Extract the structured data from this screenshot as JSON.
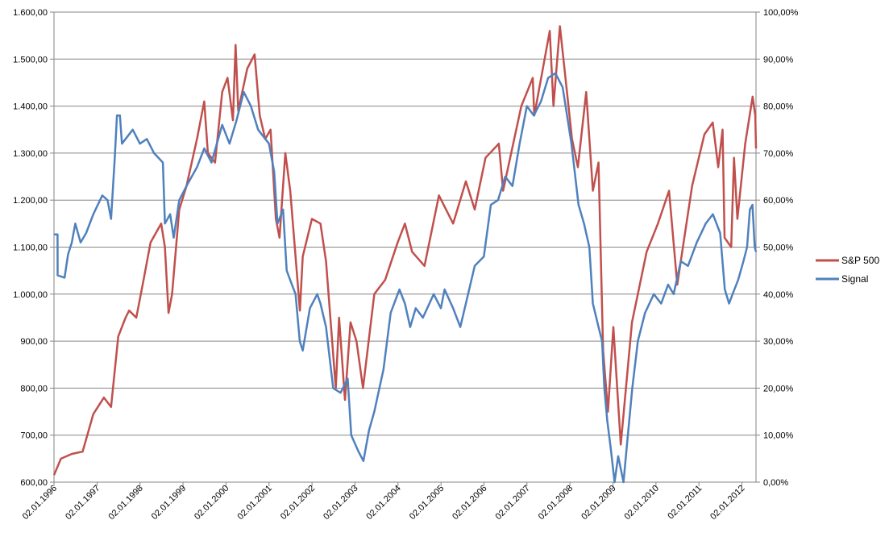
{
  "chart_data": {
    "type": "line",
    "title": "",
    "xlabel": "",
    "ylabel": "",
    "x_start": "1996-01-02",
    "x_end": "2012-05-01",
    "y_left_range": [
      600,
      1600
    ],
    "y_right_range": [
      0,
      1.0
    ],
    "y_left_ticks": [
      "600,00",
      "700,00",
      "800,00",
      "900,00",
      "1.000,00",
      "1.100,00",
      "1.200,00",
      "1.300,00",
      "1.400,00",
      "1.500,00",
      "1.600,00"
    ],
    "y_right_ticks": [
      "0,00%",
      "10,00%",
      "20,00%",
      "30,00%",
      "40,00%",
      "50,00%",
      "60,00%",
      "70,00%",
      "80,00%",
      "90,00%",
      "100,00%"
    ],
    "x_ticks": [
      "02.01.1996",
      "02.01.1997",
      "02.01.1998",
      "02.01.1999",
      "02.01.2000",
      "02.01.2001",
      "02.01.2002",
      "02.01.2003",
      "02.01.2004",
      "02.01.2005",
      "02.01.2006",
      "02.01.2007",
      "02.01.2008",
      "02.01.2009",
      "02.01.2010",
      "02.01.2011",
      "02.01.2012"
    ],
    "grid": true,
    "legend_position": "right",
    "colors": {
      "sp500": "#c0504d",
      "signal": "#4f81bd",
      "grid": "#868686",
      "axis": "#868686"
    },
    "series": [
      {
        "name": "S&P 500",
        "axis": "left",
        "points": [
          [
            "1996-01-02",
            615
          ],
          [
            "1996-03-01",
            650
          ],
          [
            "1996-06-01",
            660
          ],
          [
            "1996-09-01",
            665
          ],
          [
            "1996-12-01",
            745
          ],
          [
            "1997-03-01",
            780
          ],
          [
            "1997-05-01",
            760
          ],
          [
            "1997-07-01",
            910
          ],
          [
            "1997-09-01",
            950
          ],
          [
            "1997-10-01",
            965
          ],
          [
            "1997-12-01",
            950
          ],
          [
            "1998-02-01",
            1030
          ],
          [
            "1998-04-01",
            1110
          ],
          [
            "1998-07-01",
            1150
          ],
          [
            "1998-08-01",
            1100
          ],
          [
            "1998-09-01",
            960
          ],
          [
            "1998-10-01",
            1000
          ],
          [
            "1998-12-01",
            1180
          ],
          [
            "1999-02-01",
            1230
          ],
          [
            "1999-05-01",
            1330
          ],
          [
            "1999-07-01",
            1410
          ],
          [
            "1999-08-01",
            1300
          ],
          [
            "1999-10-01",
            1280
          ],
          [
            "1999-12-01",
            1430
          ],
          [
            "2000-01-15",
            1460
          ],
          [
            "2000-03-01",
            1370
          ],
          [
            "2000-03-24",
            1530
          ],
          [
            "2000-04-15",
            1390
          ],
          [
            "2000-07-01",
            1480
          ],
          [
            "2000-09-01",
            1510
          ],
          [
            "2000-10-15",
            1380
          ],
          [
            "2000-12-01",
            1330
          ],
          [
            "2001-01-15",
            1350
          ],
          [
            "2001-03-01",
            1160
          ],
          [
            "2001-04-01",
            1120
          ],
          [
            "2001-05-20",
            1300
          ],
          [
            "2001-07-01",
            1220
          ],
          [
            "2001-09-21",
            965
          ],
          [
            "2001-10-15",
            1080
          ],
          [
            "2002-01-01",
            1160
          ],
          [
            "2002-03-15",
            1150
          ],
          [
            "2002-05-01",
            1070
          ],
          [
            "2002-07-23",
            800
          ],
          [
            "2002-08-20",
            950
          ],
          [
            "2002-10-09",
            775
          ],
          [
            "2002-11-25",
            940
          ],
          [
            "2003-01-15",
            900
          ],
          [
            "2003-03-11",
            800
          ],
          [
            "2003-06-15",
            1000
          ],
          [
            "2003-09-15",
            1030
          ],
          [
            "2003-12-31",
            1110
          ],
          [
            "2004-03-01",
            1150
          ],
          [
            "2004-05-01",
            1090
          ],
          [
            "2004-08-15",
            1060
          ],
          [
            "2004-12-15",
            1210
          ],
          [
            "2005-04-15",
            1150
          ],
          [
            "2005-08-01",
            1240
          ],
          [
            "2005-10-15",
            1180
          ],
          [
            "2006-01-15",
            1290
          ],
          [
            "2006-05-08",
            1320
          ],
          [
            "2006-06-13",
            1220
          ],
          [
            "2006-11-15",
            1400
          ],
          [
            "2007-02-20",
            1460
          ],
          [
            "2007-03-05",
            1380
          ],
          [
            "2007-07-15",
            1560
          ],
          [
            "2007-08-15",
            1400
          ],
          [
            "2007-10-09",
            1570
          ],
          [
            "2008-01-20",
            1330
          ],
          [
            "2008-03-10",
            1270
          ],
          [
            "2008-05-19",
            1430
          ],
          [
            "2008-07-15",
            1220
          ],
          [
            "2008-09-01",
            1280
          ],
          [
            "2008-10-10",
            880
          ],
          [
            "2008-11-20",
            750
          ],
          [
            "2009-01-05",
            930
          ],
          [
            "2009-03-09",
            680
          ],
          [
            "2009-06-12",
            940
          ],
          [
            "2009-10-15",
            1090
          ],
          [
            "2010-01-19",
            1150
          ],
          [
            "2010-04-23",
            1220
          ],
          [
            "2010-07-02",
            1020
          ],
          [
            "2010-11-05",
            1230
          ],
          [
            "2011-02-18",
            1340
          ],
          [
            "2011-04-29",
            1365
          ],
          [
            "2011-06-15",
            1270
          ],
          [
            "2011-07-22",
            1350
          ],
          [
            "2011-08-08",
            1120
          ],
          [
            "2011-10-03",
            1100
          ],
          [
            "2011-10-27",
            1290
          ],
          [
            "2011-11-25",
            1160
          ],
          [
            "2012-01-30",
            1320
          ],
          [
            "2012-04-02",
            1420
          ],
          [
            "2012-04-25",
            1380
          ],
          [
            "2012-05-01",
            1310
          ]
        ]
      },
      {
        "name": "Signal",
        "axis": "right",
        "points": [
          [
            "1996-01-02",
            0.527
          ],
          [
            "1996-02-01",
            0.527
          ],
          [
            "1996-02-02",
            0.44
          ],
          [
            "1996-04-01",
            0.435
          ],
          [
            "1996-05-01",
            0.485
          ],
          [
            "1996-06-01",
            0.51
          ],
          [
            "1996-07-01",
            0.55
          ],
          [
            "1996-08-15",
            0.51
          ],
          [
            "1996-10-01",
            0.53
          ],
          [
            "1996-12-01",
            0.57
          ],
          [
            "1997-02-15",
            0.61
          ],
          [
            "1997-04-01",
            0.6
          ],
          [
            "1997-05-01",
            0.56
          ],
          [
            "1997-06-01",
            0.69
          ],
          [
            "1997-06-20",
            0.78
          ],
          [
            "1997-07-15",
            0.78
          ],
          [
            "1997-08-01",
            0.72
          ],
          [
            "1997-11-01",
            0.75
          ],
          [
            "1998-01-01",
            0.72
          ],
          [
            "1998-03-01",
            0.73
          ],
          [
            "1998-05-01",
            0.7
          ],
          [
            "1998-07-15",
            0.68
          ],
          [
            "1998-08-01",
            0.55
          ],
          [
            "1998-09-15",
            0.57
          ],
          [
            "1998-10-15",
            0.52
          ],
          [
            "1998-12-01",
            0.6
          ],
          [
            "1999-02-01",
            0.63
          ],
          [
            "1999-05-01",
            0.67
          ],
          [
            "1999-07-01",
            0.71
          ],
          [
            "1999-09-01",
            0.68
          ],
          [
            "1999-12-01",
            0.76
          ],
          [
            "2000-02-01",
            0.72
          ],
          [
            "2000-04-01",
            0.77
          ],
          [
            "2000-06-01",
            0.83
          ],
          [
            "2000-08-01",
            0.8
          ],
          [
            "2000-10-01",
            0.75
          ],
          [
            "2001-01-01",
            0.72
          ],
          [
            "2001-02-15",
            0.66
          ],
          [
            "2001-03-15",
            0.55
          ],
          [
            "2001-05-01",
            0.58
          ],
          [
            "2001-06-01",
            0.45
          ],
          [
            "2001-07-15",
            0.42
          ],
          [
            "2001-08-15",
            0.4
          ],
          [
            "2001-09-20",
            0.3
          ],
          [
            "2001-10-15",
            0.28
          ],
          [
            "2001-12-15",
            0.37
          ],
          [
            "2002-02-15",
            0.4
          ],
          [
            "2002-03-15",
            0.38
          ],
          [
            "2002-05-01",
            0.33
          ],
          [
            "2002-07-01",
            0.2
          ],
          [
            "2002-09-01",
            0.19
          ],
          [
            "2002-11-01",
            0.22
          ],
          [
            "2002-12-01",
            0.1
          ],
          [
            "2003-02-01",
            0.065
          ],
          [
            "2003-03-15",
            0.045
          ],
          [
            "2003-05-01",
            0.11
          ],
          [
            "2003-06-15",
            0.15
          ],
          [
            "2003-09-01",
            0.24
          ],
          [
            "2003-11-01",
            0.36
          ],
          [
            "2004-01-15",
            0.41
          ],
          [
            "2004-03-01",
            0.38
          ],
          [
            "2004-04-15",
            0.33
          ],
          [
            "2004-06-01",
            0.37
          ],
          [
            "2004-08-01",
            0.35
          ],
          [
            "2004-11-01",
            0.4
          ],
          [
            "2005-01-01",
            0.37
          ],
          [
            "2005-02-01",
            0.41
          ],
          [
            "2005-04-15",
            0.37
          ],
          [
            "2005-06-15",
            0.33
          ],
          [
            "2005-08-01",
            0.38
          ],
          [
            "2005-10-15",
            0.46
          ],
          [
            "2006-01-01",
            0.48
          ],
          [
            "2006-03-01",
            0.59
          ],
          [
            "2006-05-01",
            0.6
          ],
          [
            "2006-07-01",
            0.65
          ],
          [
            "2006-09-01",
            0.63
          ],
          [
            "2006-11-01",
            0.72
          ],
          [
            "2007-01-01",
            0.8
          ],
          [
            "2007-03-01",
            0.78
          ],
          [
            "2007-05-01",
            0.81
          ],
          [
            "2007-07-01",
            0.86
          ],
          [
            "2007-09-01",
            0.87
          ],
          [
            "2007-11-01",
            0.84
          ],
          [
            "2008-01-15",
            0.72
          ],
          [
            "2008-03-15",
            0.59
          ],
          [
            "2008-05-01",
            0.55
          ],
          [
            "2008-06-15",
            0.5
          ],
          [
            "2008-07-15",
            0.38
          ],
          [
            "2008-09-01",
            0.33
          ],
          [
            "2008-10-01",
            0.3
          ],
          [
            "2008-10-20",
            0.2
          ],
          [
            "2008-11-15",
            0.13
          ],
          [
            "2008-12-15",
            0.07
          ],
          [
            "2009-01-15",
            0.0
          ],
          [
            "2009-02-15",
            0.055
          ],
          [
            "2009-04-01",
            0.0
          ],
          [
            "2009-05-01",
            0.08
          ],
          [
            "2009-06-15",
            0.2
          ],
          [
            "2009-08-01",
            0.3
          ],
          [
            "2009-10-01",
            0.36
          ],
          [
            "2009-12-15",
            0.4
          ],
          [
            "2010-02-15",
            0.38
          ],
          [
            "2010-04-15",
            0.42
          ],
          [
            "2010-06-01",
            0.4
          ],
          [
            "2010-08-01",
            0.47
          ],
          [
            "2010-10-01",
            0.46
          ],
          [
            "2010-12-15",
            0.51
          ],
          [
            "2011-03-01",
            0.55
          ],
          [
            "2011-05-01",
            0.57
          ],
          [
            "2011-07-01",
            0.53
          ],
          [
            "2011-08-10",
            0.41
          ],
          [
            "2011-09-15",
            0.38
          ],
          [
            "2011-10-15",
            0.4
          ],
          [
            "2011-12-01",
            0.43
          ],
          [
            "2012-01-15",
            0.47
          ],
          [
            "2012-02-15",
            0.5
          ],
          [
            "2012-03-10",
            0.58
          ],
          [
            "2012-04-01",
            0.59
          ],
          [
            "2012-04-20",
            0.5
          ],
          [
            "2012-05-01",
            0.49
          ]
        ]
      }
    ]
  }
}
